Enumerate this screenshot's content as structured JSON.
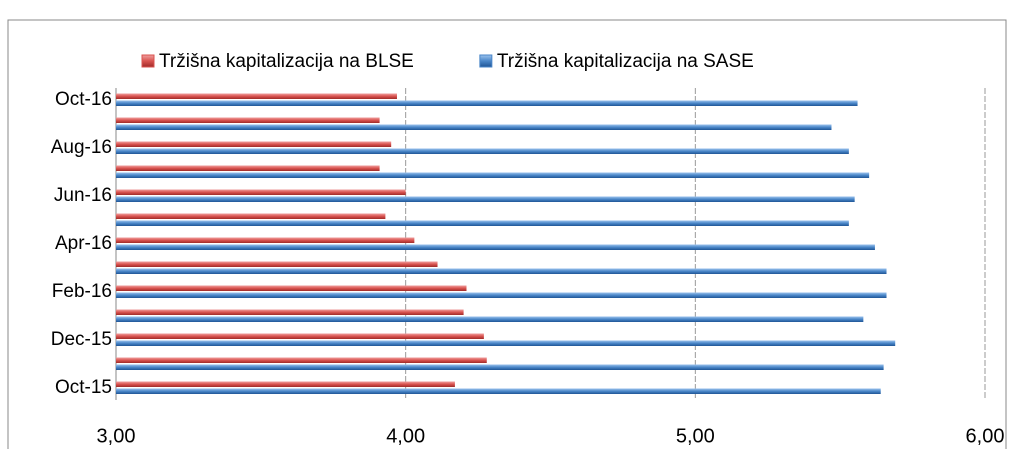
{
  "chart_data": {
    "type": "hbar",
    "categories": [
      "Oct-15",
      null,
      "Dec-15",
      null,
      "Feb-16",
      null,
      "Apr-16",
      null,
      "Jun-16",
      null,
      "Aug-16",
      null,
      "Oct-16"
    ],
    "series": [
      {
        "name": "Tržišna kapitalizacija na BLSE",
        "color": "#d9534f",
        "values": [
          4.17,
          4.28,
          4.27,
          4.2,
          4.21,
          4.11,
          4.03,
          3.93,
          4.0,
          3.91,
          3.95,
          3.91,
          3.97
        ]
      },
      {
        "name": "Tržišna kapitalizacija na SASE",
        "color": "#4a86c8",
        "values": [
          5.64,
          5.65,
          5.69,
          5.58,
          5.66,
          5.66,
          5.62,
          5.53,
          5.55,
          5.6,
          5.53,
          5.47,
          5.56
        ]
      }
    ],
    "xlim": [
      3,
      6
    ],
    "xticks": [
      {
        "value": 3,
        "label": "3,00"
      },
      {
        "value": 4,
        "label": "4,00"
      },
      {
        "value": 5,
        "label": "5,00"
      },
      {
        "value": 6,
        "label": "6,00"
      }
    ],
    "grid": true,
    "legend": "top"
  }
}
